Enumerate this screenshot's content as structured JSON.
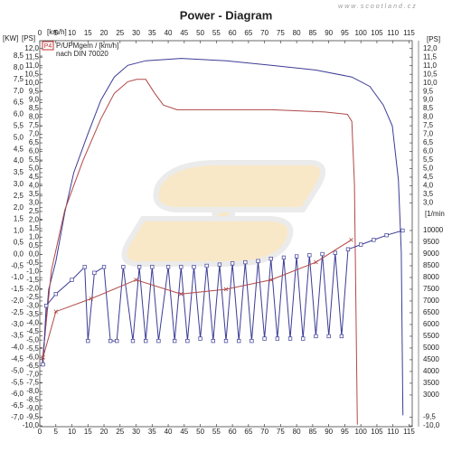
{
  "chart_data": {
    "type": "line",
    "title": "Power - Diagram",
    "watermark": "www.scootland.cz",
    "legend": {
      "badge": "P4",
      "lines": [
        "P/UPMgem / [km/h]",
        "nach DIN 70020"
      ]
    },
    "x_label": "[km/h]",
    "xlim": [
      0,
      116
    ],
    "xticks": [
      0,
      5,
      10,
      15,
      20,
      25,
      30,
      35,
      40,
      45,
      50,
      55,
      60,
      65,
      70,
      75,
      80,
      85,
      90,
      95,
      100,
      105,
      110,
      115
    ],
    "axes": {
      "kw": {
        "label": "[KW]",
        "lim": [
          -7.39,
          9.16
        ],
        "ticks": [
          {
            "value": 8.5,
            "label": "8,5"
          },
          {
            "value": 8,
            "label": "8,0"
          },
          {
            "value": 7.5,
            "label": "7,5"
          },
          {
            "value": 7,
            "label": "7,0"
          },
          {
            "value": 6.5,
            "label": "6,5"
          },
          {
            "value": 6,
            "label": "6,0"
          },
          {
            "value": 5.5,
            "label": "5,5"
          },
          {
            "value": 5,
            "label": "5,0"
          },
          {
            "value": 4.5,
            "label": "4,5"
          },
          {
            "value": 4,
            "label": "4,0"
          },
          {
            "value": 3.5,
            "label": "3,5"
          },
          {
            "value": 3,
            "label": "3,0"
          },
          {
            "value": 2.5,
            "label": "2,5"
          },
          {
            "value": 2,
            "label": "2,0"
          },
          {
            "value": 1.5,
            "label": "1,5"
          },
          {
            "value": 1,
            "label": "1,0"
          },
          {
            "value": 0.5,
            "label": "0,5"
          },
          {
            "value": 0,
            "label": "0,0"
          },
          {
            "value": -0.5,
            "label": "-0,5"
          },
          {
            "value": -1,
            "label": "-1,0"
          },
          {
            "value": -1.5,
            "label": "-1,5"
          },
          {
            "value": -2,
            "label": "-2,0"
          },
          {
            "value": -2.5,
            "label": "-2,5"
          },
          {
            "value": -3,
            "label": "-3,0"
          },
          {
            "value": -3.5,
            "label": "-3,5"
          },
          {
            "value": -4,
            "label": "-4,0"
          },
          {
            "value": -4.5,
            "label": "-4,5"
          },
          {
            "value": -5,
            "label": "-5,0"
          },
          {
            "value": -5.5,
            "label": "-5,5"
          },
          {
            "value": -6,
            "label": "-6,0"
          },
          {
            "value": -6.5,
            "label": "-6,5"
          },
          {
            "value": -7,
            "label": "-7,0"
          }
        ]
      },
      "ps": {
        "label": "[PS]",
        "lim": [
          -10.05,
          12.46
        ],
        "ticks": [
          {
            "value": 12,
            "label": "12,0"
          },
          {
            "value": 11.5,
            "label": "11,5"
          },
          {
            "value": 11,
            "label": "11,0"
          },
          {
            "value": 10.5,
            "label": "10,5"
          },
          {
            "value": 10,
            "label": "10,0"
          },
          {
            "value": 9.5,
            "label": "9,5"
          },
          {
            "value": 9,
            "label": "9,0"
          },
          {
            "value": 8.5,
            "label": "8,5"
          },
          {
            "value": 8,
            "label": "8,0"
          },
          {
            "value": 7.5,
            "label": "7,5"
          },
          {
            "value": 7,
            "label": "7,0"
          },
          {
            "value": 6.5,
            "label": "6,5"
          },
          {
            "value": 6,
            "label": "6,0"
          },
          {
            "value": 5.5,
            "label": "5,5"
          },
          {
            "value": 5,
            "label": "5,0"
          },
          {
            "value": 4.5,
            "label": "4,5"
          },
          {
            "value": 4,
            "label": "4,0"
          },
          {
            "value": 3.5,
            "label": "3,5"
          },
          {
            "value": 3,
            "label": "3,0"
          },
          {
            "value": 2.5,
            "label": "2,5"
          },
          {
            "value": 2,
            "label": "2,0"
          },
          {
            "value": 1.5,
            "label": "1,5"
          },
          {
            "value": 1,
            "label": "1,0"
          },
          {
            "value": 0.5,
            "label": "0,5"
          },
          {
            "value": 0,
            "label": "0,0"
          },
          {
            "value": -0.5,
            "label": "-0,5"
          },
          {
            "value": -1,
            "label": "-1,0"
          },
          {
            "value": -1.5,
            "label": "-1,5"
          },
          {
            "value": -2,
            "label": "-2,0"
          },
          {
            "value": -2.5,
            "label": "-2,5"
          },
          {
            "value": -3,
            "label": "-3,0"
          },
          {
            "value": -3.5,
            "label": "-3,5"
          },
          {
            "value": -4,
            "label": "-4,0"
          },
          {
            "value": -4.5,
            "label": "-4,5"
          },
          {
            "value": -5,
            "label": "-5,0"
          },
          {
            "value": -5.5,
            "label": "-5,5"
          },
          {
            "value": -6,
            "label": "-6,0"
          },
          {
            "value": -6.5,
            "label": "-6,5"
          },
          {
            "value": -7,
            "label": "-7,0"
          },
          {
            "value": -7.5,
            "label": "-7,5"
          },
          {
            "value": -8,
            "label": "-8,0"
          },
          {
            "value": -8.5,
            "label": "-8,5"
          },
          {
            "value": -9,
            "label": "-9,0"
          },
          {
            "value": -9.5,
            "label": "-9,5"
          },
          {
            "value": -10,
            "label": "-10,0"
          }
        ]
      },
      "ps_right": {
        "label": "[PS]",
        "lim": [
          -10.05,
          12.46
        ],
        "ticks": [
          {
            "value": 12,
            "label": "12,0"
          },
          {
            "value": 11.5,
            "label": "11,5"
          },
          {
            "value": 11,
            "label": "11,0"
          },
          {
            "value": 10.5,
            "label": "10,5"
          },
          {
            "value": 10,
            "label": "10,0"
          },
          {
            "value": 9.5,
            "label": "9,5"
          },
          {
            "value": 9,
            "label": "9,0"
          },
          {
            "value": 8.5,
            "label": "8,5"
          },
          {
            "value": 8,
            "label": "8,0"
          },
          {
            "value": 7.5,
            "label": "7,5"
          },
          {
            "value": 7,
            "label": "7,0"
          },
          {
            "value": 6.5,
            "label": "6,5"
          },
          {
            "value": 6,
            "label": "6,0"
          },
          {
            "value": 5.5,
            "label": "5,5"
          },
          {
            "value": 5,
            "label": "5,0"
          },
          {
            "value": 4.5,
            "label": "4,5"
          },
          {
            "value": 4,
            "label": "4,0"
          },
          {
            "value": 3.5,
            "label": "3,5"
          },
          {
            "value": 3,
            "label": "3,0"
          },
          {
            "value": -9.5,
            "label": "-9,5"
          },
          {
            "value": -10,
            "label": "-10,0"
          }
        ]
      },
      "rpm": {
        "label": "[1/min",
        "lim": [
          1650,
          18080
        ],
        "ticks": [
          10000,
          9500,
          9000,
          8500,
          8000,
          7500,
          7000,
          6500,
          6000,
          5500,
          5000,
          4500,
          4000,
          3500,
          3000
        ]
      }
    },
    "series": [
      {
        "axis": "kw",
        "color": "#3c3c96",
        "x": [
          0.8,
          2.8,
          5,
          7.8,
          10.6,
          14.8,
          19,
          23.2,
          27.4,
          33,
          44.1,
          58.1,
          72.1,
          86,
          97.2,
          102.8,
          107,
          109.8,
          111.7,
          112.6,
          113.1
        ],
        "values": [
          -4.8,
          -1.5,
          -0.3,
          1.8,
          3.5,
          5.1,
          6.6,
          7.6,
          8.1,
          8.3,
          8.4,
          8.3,
          8.1,
          7.9,
          7.6,
          7.2,
          6.4,
          5.5,
          3.2,
          0.1,
          -6.9
        ]
      },
      {
        "axis": "kw",
        "color": "#b04848",
        "x": [
          0.8,
          3.6,
          7.8,
          13.4,
          19,
          23.2,
          27.4,
          30.2,
          33,
          35.8,
          38.5,
          42.7,
          52.5,
          72.1,
          88.8,
          95.8,
          97.2,
          98,
          98.9
        ],
        "values": [
          -4.6,
          -0.7,
          1.9,
          4.0,
          5.8,
          6.9,
          7.4,
          7.5,
          7.5,
          6.9,
          6.4,
          6.2,
          6.2,
          6.2,
          6.1,
          6.0,
          5.7,
          3.0,
          -7.3
        ]
      },
      {
        "axis": "rpm",
        "color": "#3c3c96",
        "marker": "square",
        "x": [
          1,
          2,
          5,
          10,
          14,
          15,
          17,
          20,
          22,
          24,
          26,
          29,
          31,
          33,
          35,
          37,
          40,
          42,
          44,
          46,
          48,
          50,
          52,
          54,
          56,
          58,
          60,
          62,
          64,
          66,
          68,
          70,
          72,
          74,
          76,
          78,
          80,
          82,
          84,
          86,
          88,
          90,
          92,
          94,
          96,
          100,
          104,
          108,
          113
        ],
        "values": [
          4300,
          6800,
          7300,
          7900,
          8450,
          5300,
          8200,
          8450,
          5300,
          5300,
          8450,
          5300,
          8450,
          5300,
          8450,
          5300,
          8450,
          5300,
          8450,
          5300,
          8450,
          5400,
          8500,
          5300,
          8550,
          5300,
          8600,
          5300,
          8650,
          5300,
          8700,
          5400,
          8800,
          5400,
          8850,
          5400,
          8900,
          5400,
          8950,
          5500,
          9000,
          5500,
          9050,
          5500,
          9200,
          9400,
          9600,
          9800,
          10000
        ]
      },
      {
        "axis": "rpm",
        "color": "#b04848",
        "marker": "cross",
        "x": [
          1,
          5,
          16,
          30,
          44,
          58,
          72,
          86,
          97
        ],
        "values": [
          4600,
          6550,
          7100,
          7900,
          7300,
          7500,
          7900,
          8650,
          9600
        ]
      }
    ]
  }
}
